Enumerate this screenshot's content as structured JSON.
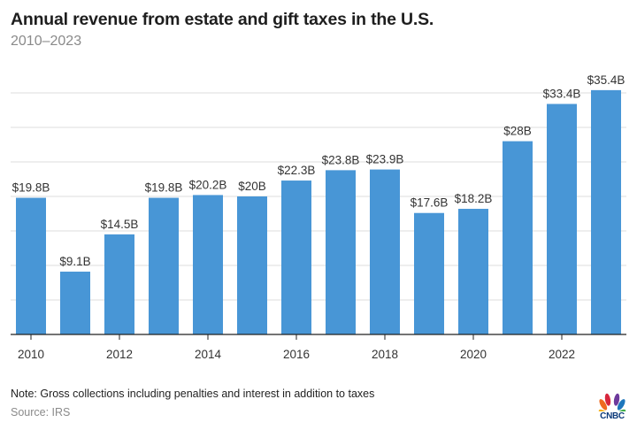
{
  "header": {
    "title": "Annual revenue from estate and gift taxes in the U.S.",
    "subtitle": "2010–2023"
  },
  "footer": {
    "note": "Note: Gross collections including penalties and interest in addition to taxes",
    "source": "Source: IRS",
    "logo_text": "CNBC"
  },
  "colors": {
    "bar": "#4896d6",
    "grid": "#dddddd",
    "axis": "#222222",
    "label": "#333333"
  },
  "chart_data": {
    "type": "bar",
    "title": "Annual revenue from estate and gift taxes in the U.S.",
    "subtitle": "2010–2023",
    "xlabel": "",
    "ylabel": "",
    "categories": [
      "2010",
      "2011",
      "2012",
      "2013",
      "2014",
      "2015",
      "2016",
      "2017",
      "2018",
      "2019",
      "2020",
      "2021",
      "2022",
      "2023"
    ],
    "values": [
      19.8,
      9.1,
      14.5,
      19.8,
      20.2,
      20.0,
      22.3,
      23.8,
      23.9,
      17.6,
      18.2,
      28.0,
      33.4,
      35.4
    ],
    "data_labels": [
      "$19.8B",
      "$9.1B",
      "$14.5B",
      "$19.8B",
      "$20.2B",
      "$20B",
      "$22.3B",
      "$23.8B",
      "$23.9B",
      "$17.6B",
      "$18.2B",
      "$28B",
      "$33.4B",
      "$35.4B"
    ],
    "x_tick_labels": [
      "2010",
      "2012",
      "2014",
      "2016",
      "2018",
      "2020",
      "2022"
    ],
    "units": "billions of USD",
    "ylim": [
      0,
      35
    ],
    "y_gridlines": [
      5,
      10,
      15,
      20,
      25,
      30,
      35
    ],
    "y_tick_labels_shown": false,
    "grid": true,
    "legend": "none"
  }
}
